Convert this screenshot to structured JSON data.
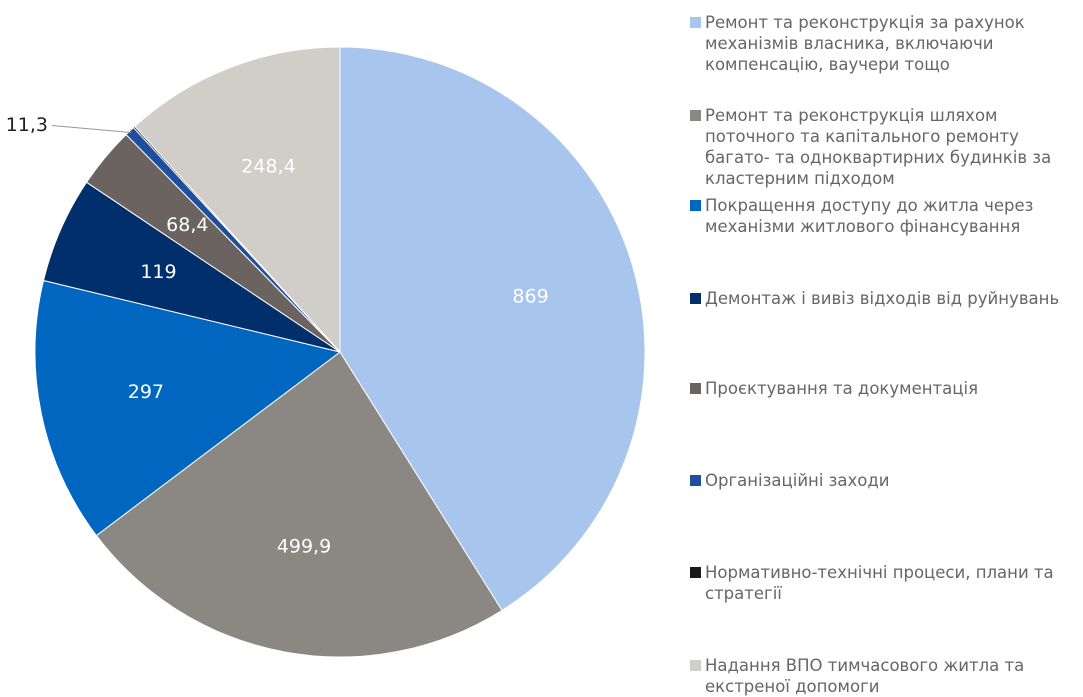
{
  "chart_data": {
    "type": "pie",
    "categories": [
      "Ремонт та реконструкція за рахунок механізмів власника, включаючи компенсацію, ваучери тощо",
      "Ремонт та реконструкція шляхом поточного та капітального ремонту багато- та одноквартирних будинків за кластерним підходом",
      "Покращення доступу до житла через механізми житлового фінансування",
      "Демонтаж і вивіз відходів від руйнувань",
      "Проєктування та документація",
      "Організаційні заходи",
      "Нормативно-технічні процеси, плани та стратегії",
      "Надання ВПО тимчасового житла та екстреної допомоги"
    ],
    "values": [
      869,
      499.9,
      297,
      119,
      68.4,
      11.3,
      2,
      248.4
    ],
    "value_labels": [
      "869",
      "499,9",
      "297",
      "119",
      "68,4",
      "11,3",
      null,
      "248,4"
    ],
    "colors": [
      "#a8c5ed",
      "#8b8884",
      "#0066bf",
      "#002f6c",
      "#6b6360",
      "#1f4f9c",
      "#1a1a1a",
      "#d1cdc9"
    ],
    "legend": "right"
  }
}
